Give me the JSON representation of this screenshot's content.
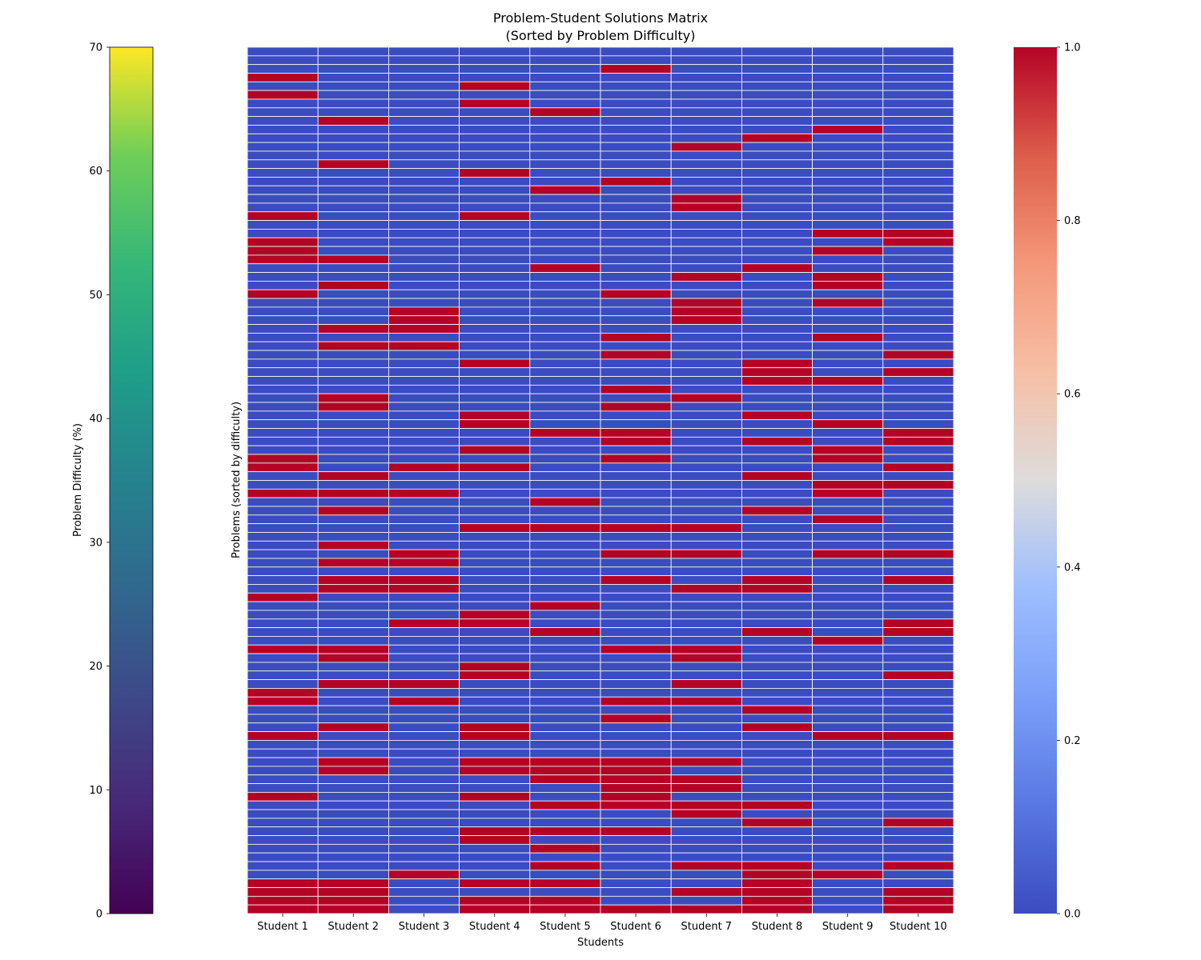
{
  "chart_data": [
    {
      "type": "heatmap",
      "title": [
        "Problem-Student Solutions Matrix",
        "(Sorted by Problem Difficulty)"
      ],
      "xlabel": "Students",
      "ylabel": "Problems (sorted by difficulty)",
      "columns": [
        "Student 1",
        "Student 2",
        "Student 3",
        "Student 4",
        "Student 5",
        "Student 6",
        "Student 7",
        "Student 8",
        "Student 9",
        "Student 10"
      ],
      "colormap": "coolwarm",
      "low_color": "#3b4cc0",
      "high_color": "#b40426",
      "row_order": "top to bottom (hardest first, easiest last)",
      "rows": [
        "0000000000",
        "0000000000",
        "0000010000",
        "1000000000",
        "0001000000",
        "1000000000",
        "0001000000",
        "0000100000",
        "0100000000",
        "0000000010",
        "0000000100",
        "0000001000",
        "0000000000",
        "0100000000",
        "0001000000",
        "0000010000",
        "0000100000",
        "0000001000",
        "0000001000",
        "1001000000",
        "0000000000",
        "0000000011",
        "1000000001",
        "1000000010",
        "1100000000",
        "0000100100",
        "0000001010",
        "0100000010",
        "1000010000",
        "0000001010",
        "0010001000",
        "0010001000",
        "0110000000",
        "0000010010",
        "0110000000",
        "0000010001",
        "0001000100",
        "0000000101",
        "0000000110",
        "0000010000",
        "0100001000",
        "0100010000",
        "0001000100",
        "0001000010",
        "0000110001",
        "0000010101",
        "0001000010",
        "1000010010",
        "1011000001",
        "0100000100",
        "0000000011",
        "1110000010",
        "0000100000",
        "0100000100",
        "0000000010",
        "0001111000",
        "0000000000",
        "0100000000",
        "0010011011",
        "0110000000",
        "0000000000",
        "0110010101",
        "0110001100",
        "1000000000",
        "0000100000",
        "0001000000",
        "0011000001",
        "0000100101",
        "0000000010",
        "1100011000",
        "0100001000",
        "0001000000",
        "0001000001",
        "0110001000",
        "1000000000",
        "1010011000",
        "0000000100",
        "0000010000",
        "0101000100",
        "1001000011",
        "0000000000",
        "0000000000",
        "0101111000",
        "0101110000",
        "0000111000",
        "0000011000",
        "1001010000",
        "0000111100",
        "0000001000",
        "0000000101",
        "0001110000",
        "0001000000",
        "0000100000",
        "0000000000",
        "0000101101",
        "0010000110",
        "1101100100",
        "1100001101",
        "1101100101",
        "1101111101"
      ]
    },
    {
      "type": "colorbar",
      "label": "Problem Difficulty (%)",
      "colormap": "viridis",
      "range": [
        0,
        70
      ],
      "ticks": [
        "0",
        "10",
        "20",
        "30",
        "40",
        "50",
        "60",
        "70"
      ]
    },
    {
      "type": "colorbar",
      "colormap": "coolwarm",
      "range": [
        0,
        1
      ],
      "ticks": [
        "0.0",
        "0.2",
        "0.4",
        "0.6",
        "0.8",
        "1.0"
      ]
    }
  ]
}
